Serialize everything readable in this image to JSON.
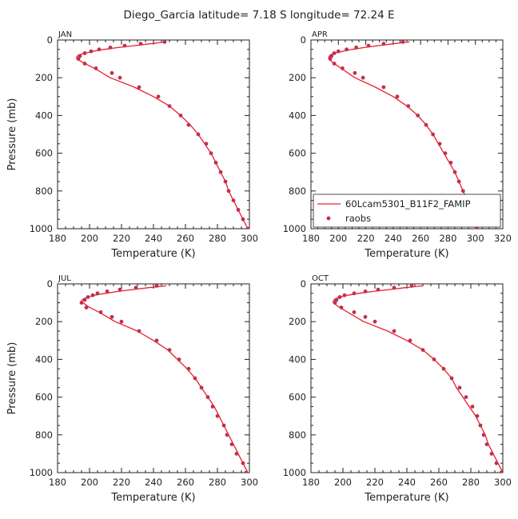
{
  "title": "Diego_Garcia   latitude=  7.18 S  longitude=  72.24 E",
  "legend": {
    "model": "60Lcam5301_B11F2_FAMIP",
    "obs": "raobs"
  },
  "colors": {
    "model_line": "#e8202a",
    "obs_marker": "#c0304f",
    "axis": "#222222"
  },
  "chart_data": [
    {
      "type": "line",
      "panel": "JAN",
      "xlabel": "Temperature (K)",
      "ylabel": "Pressure (mb)",
      "xlim": [
        180,
        300
      ],
      "ylim": [
        1000,
        0
      ],
      "xticks": [
        180,
        200,
        220,
        240,
        260,
        280,
        300
      ],
      "yticks": [
        0,
        200,
        400,
        600,
        800,
        1000
      ],
      "legend": false,
      "series": [
        {
          "name": "60Lcam5301_B11F2_FAMIP",
          "style": "line",
          "points": [
            [
              248,
              10
            ],
            [
              238,
              20
            ],
            [
              228,
              30
            ],
            [
              218,
              40
            ],
            [
              209,
              50
            ],
            [
              202,
              60
            ],
            [
              197,
              70
            ],
            [
              193,
              80
            ],
            [
              192,
              90
            ],
            [
              192,
              100
            ],
            [
              196,
              120
            ],
            [
              203,
              150
            ],
            [
              213,
              200
            ],
            [
              228,
              250
            ],
            [
              240,
              300
            ],
            [
              250,
              350
            ],
            [
              257,
              400
            ],
            [
              263,
              450
            ],
            [
              268,
              500
            ],
            [
              272,
              550
            ],
            [
              276,
              600
            ],
            [
              279,
              650
            ],
            [
              282,
              700
            ],
            [
              285,
              750
            ],
            [
              287,
              800
            ],
            [
              290,
              850
            ],
            [
              293,
              900
            ],
            [
              296,
              950
            ],
            [
              299,
              1000
            ]
          ]
        },
        {
          "name": "raobs",
          "style": "marker",
          "points": [
            [
              247,
              10
            ],
            [
              232,
              20
            ],
            [
              222,
              30
            ],
            [
              213,
              40
            ],
            [
              206,
              50
            ],
            [
              201,
              60
            ],
            [
              197,
              70
            ],
            [
              194,
              85
            ],
            [
              193,
              100
            ],
            [
              197,
              125
            ],
            [
              204,
              150
            ],
            [
              214,
              175
            ],
            [
              219,
              200
            ],
            [
              231,
              250
            ],
            [
              243,
              300
            ],
            [
              250,
              350
            ],
            [
              257,
              400
            ],
            [
              262,
              450
            ],
            [
              268,
              500
            ],
            [
              273,
              550
            ],
            [
              276,
              600
            ],
            [
              279,
              650
            ],
            [
              282,
              700
            ],
            [
              285,
              750
            ],
            [
              287,
              800
            ],
            [
              290,
              850
            ],
            [
              293,
              900
            ],
            [
              296,
              950
            ],
            [
              299,
              1000
            ]
          ]
        }
      ]
    },
    {
      "type": "line",
      "panel": "APR",
      "xlabel": "Temperature (K)",
      "ylabel": "",
      "xlim": [
        180,
        320
      ],
      "ylim": [
        1000,
        0
      ],
      "xticks": [
        180,
        200,
        220,
        240,
        260,
        280,
        300,
        320
      ],
      "yticks": [
        0,
        200,
        400,
        600,
        800,
        1000
      ],
      "legend": true,
      "series": [
        {
          "name": "60Lcam5301_B11F2_FAMIP",
          "style": "line",
          "points": [
            [
              252,
              10
            ],
            [
              240,
              20
            ],
            [
              229,
              30
            ],
            [
              219,
              40
            ],
            [
              210,
              50
            ],
            [
              203,
              60
            ],
            [
              197,
              70
            ],
            [
              194,
              80
            ],
            [
              193,
              90
            ],
            [
              193,
              100
            ],
            [
              196,
              120
            ],
            [
              202,
              150
            ],
            [
              212,
              200
            ],
            [
              227,
              250
            ],
            [
              240,
              300
            ],
            [
              250,
              350
            ],
            [
              258,
              400
            ],
            [
              264,
              450
            ],
            [
              269,
              500
            ],
            [
              273,
              550
            ],
            [
              277,
              600
            ],
            [
              281,
              650
            ],
            [
              285,
              700
            ],
            [
              288,
              750
            ],
            [
              291,
              800
            ],
            [
              294,
              850
            ],
            [
              297,
              900
            ],
            [
              300,
              950
            ],
            [
              302,
              1000
            ]
          ]
        },
        {
          "name": "raobs",
          "style": "marker",
          "points": [
            [
              247,
              10
            ],
            [
              233,
              20
            ],
            [
              222,
              30
            ],
            [
              213,
              40
            ],
            [
              206,
              50
            ],
            [
              200,
              60
            ],
            [
              197,
              70
            ],
            [
              195,
              85
            ],
            [
              194,
              100
            ],
            [
              197,
              125
            ],
            [
              203,
              150
            ],
            [
              212,
              175
            ],
            [
              218,
              200
            ],
            [
              233,
              250
            ],
            [
              243,
              300
            ],
            [
              251,
              350
            ],
            [
              258,
              400
            ],
            [
              264,
              450
            ],
            [
              269,
              500
            ],
            [
              274,
              550
            ],
            [
              278,
              600
            ],
            [
              282,
              650
            ],
            [
              285,
              700
            ],
            [
              288,
              750
            ],
            [
              291,
              800
            ],
            [
              293,
              850
            ],
            [
              296,
              900
            ],
            [
              298,
              950
            ],
            [
              301,
              1000
            ]
          ]
        }
      ]
    },
    {
      "type": "line",
      "panel": "JUL",
      "xlabel": "Temperature (K)",
      "ylabel": "Pressure (mb)",
      "xlim": [
        180,
        300
      ],
      "ylim": [
        1000,
        0
      ],
      "xticks": [
        180,
        200,
        220,
        240,
        260,
        280,
        300
      ],
      "yticks": [
        0,
        200,
        400,
        600,
        800,
        1000
      ],
      "legend": false,
      "series": [
        {
          "name": "60Lcam5301_B11F2_FAMIP",
          "style": "line",
          "points": [
            [
              248,
              10
            ],
            [
              237,
              20
            ],
            [
              227,
              30
            ],
            [
              218,
              40
            ],
            [
              210,
              50
            ],
            [
              203,
              60
            ],
            [
              199,
              70
            ],
            [
              196,
              80
            ],
            [
              195,
              90
            ],
            [
              196,
              100
            ],
            [
              199,
              120
            ],
            [
              206,
              150
            ],
            [
              216,
              200
            ],
            [
              230,
              250
            ],
            [
              240,
              300
            ],
            [
              249,
              350
            ],
            [
              255,
              400
            ],
            [
              261,
              450
            ],
            [
              266,
              500
            ],
            [
              270,
              550
            ],
            [
              274,
              600
            ],
            [
              278,
              650
            ],
            [
              281,
              700
            ],
            [
              284,
              750
            ],
            [
              287,
              800
            ],
            [
              290,
              850
            ],
            [
              293,
              900
            ],
            [
              296,
              950
            ],
            [
              299,
              1000
            ]
          ]
        },
        {
          "name": "raobs",
          "style": "marker",
          "points": [
            [
              242,
              10
            ],
            [
              229,
              20
            ],
            [
              219,
              30
            ],
            [
              211,
              40
            ],
            [
              205,
              50
            ],
            [
              202,
              60
            ],
            [
              199,
              70
            ],
            [
              197,
              85
            ],
            [
              195,
              100
            ],
            [
              198,
              125
            ],
            [
              207,
              150
            ],
            [
              214,
              175
            ],
            [
              220,
              200
            ],
            [
              231,
              250
            ],
            [
              242,
              300
            ],
            [
              250,
              350
            ],
            [
              256,
              400
            ],
            [
              262,
              450
            ],
            [
              266,
              500
            ],
            [
              270,
              550
            ],
            [
              274,
              600
            ],
            [
              277,
              650
            ],
            [
              280,
              700
            ],
            [
              284,
              750
            ],
            [
              286,
              800
            ],
            [
              289,
              850
            ],
            [
              292,
              900
            ],
            [
              296,
              950
            ],
            [
              298,
              1000
            ]
          ]
        }
      ]
    },
    {
      "type": "line",
      "panel": "OCT",
      "xlabel": "Temperature (K)",
      "ylabel": "",
      "xlim": [
        180,
        300
      ],
      "ylim": [
        1000,
        0
      ],
      "xticks": [
        180,
        200,
        220,
        240,
        260,
        280,
        300
      ],
      "yticks": [
        0,
        200,
        400,
        600,
        800,
        1000
      ],
      "legend": false,
      "series": [
        {
          "name": "60Lcam5301_B11F2_FAMIP",
          "style": "line",
          "points": [
            [
              250,
              10
            ],
            [
              239,
              20
            ],
            [
              229,
              30
            ],
            [
              219,
              40
            ],
            [
              210,
              50
            ],
            [
              203,
              60
            ],
            [
              198,
              70
            ],
            [
              195,
              80
            ],
            [
              194,
              90
            ],
            [
              194,
              100
            ],
            [
              197,
              120
            ],
            [
              203,
              150
            ],
            [
              213,
              200
            ],
            [
              228,
              250
            ],
            [
              240,
              300
            ],
            [
              250,
              350
            ],
            [
              257,
              400
            ],
            [
              263,
              450
            ],
            [
              268,
              500
            ],
            [
              271,
              550
            ],
            [
              275,
              600
            ],
            [
              279,
              650
            ],
            [
              283,
              700
            ],
            [
              286,
              750
            ],
            [
              289,
              800
            ],
            [
              291,
              850
            ],
            [
              294,
              900
            ],
            [
              297,
              950
            ],
            [
              300,
              1000
            ]
          ]
        },
        {
          "name": "raobs",
          "style": "marker",
          "points": [
            [
              243,
              10
            ],
            [
              232,
              20
            ],
            [
              222,
              30
            ],
            [
              214,
              40
            ],
            [
              207,
              50
            ],
            [
              201,
              60
            ],
            [
              198,
              70
            ],
            [
              196,
              85
            ],
            [
              195,
              100
            ],
            [
              199,
              125
            ],
            [
              207,
              150
            ],
            [
              214,
              175
            ],
            [
              220,
              200
            ],
            [
              232,
              250
            ],
            [
              242,
              300
            ],
            [
              250,
              350
            ],
            [
              257,
              400
            ],
            [
              263,
              450
            ],
            [
              268,
              500
            ],
            [
              273,
              550
            ],
            [
              277,
              600
            ],
            [
              281,
              650
            ],
            [
              284,
              700
            ],
            [
              286,
              750
            ],
            [
              288,
              800
            ],
            [
              290,
              850
            ],
            [
              293,
              900
            ],
            [
              296,
              950
            ],
            [
              299,
              1000
            ]
          ]
        }
      ]
    }
  ]
}
